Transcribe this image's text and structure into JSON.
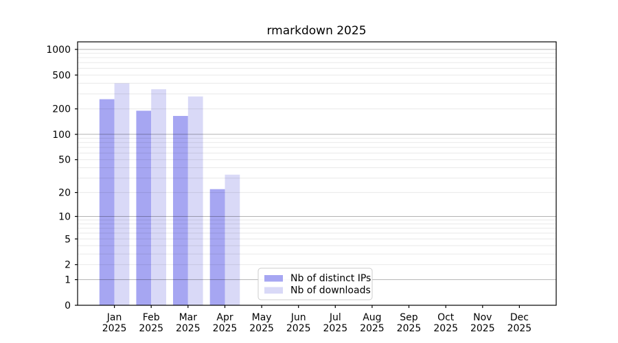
{
  "chart_data": {
    "type": "bar",
    "title": "rmarkdown 2025",
    "categories": [
      "Jan",
      "Feb",
      "Mar",
      "Apr",
      "May",
      "Jun",
      "Jul",
      "Aug",
      "Sep",
      "Oct",
      "Nov",
      "Dec"
    ],
    "x_tick_year": "2025",
    "series": [
      {
        "name": "Nb of distinct IPs",
        "color": "#a6a6f2",
        "values": [
          260,
          190,
          165,
          22,
          null,
          null,
          null,
          null,
          null,
          null,
          null,
          null
        ]
      },
      {
        "name": "Nb of downloads",
        "color": "#d9d9f7",
        "values": [
          400,
          340,
          280,
          33,
          null,
          null,
          null,
          null,
          null,
          null,
          null,
          null
        ]
      }
    ],
    "yscale": "log1p",
    "ylim": [
      0,
      1200
    ],
    "yticks": [
      0,
      1,
      2,
      5,
      10,
      20,
      50,
      100,
      200,
      500,
      1000
    ],
    "grid": {
      "major": [
        1,
        10,
        100,
        1000
      ],
      "minor": [
        2,
        3,
        4,
        5,
        6,
        7,
        8,
        9,
        20,
        30,
        40,
        50,
        60,
        70,
        80,
        90,
        200,
        300,
        400,
        500,
        600,
        700,
        800,
        900
      ]
    },
    "legend": {
      "position": "lower center",
      "labels": [
        "Nb of distinct IPs",
        "Nb of downloads"
      ]
    },
    "colors": {
      "grid_major": "rgba(0,0,0,0.30)",
      "grid_minor": "rgba(0,0,0,0.09)",
      "spine": "#000000",
      "text": "#000000",
      "legend_border": "#cccccc",
      "legend_bg": "rgba(255,255,255,0.93)",
      "background": "#ffffff"
    }
  }
}
